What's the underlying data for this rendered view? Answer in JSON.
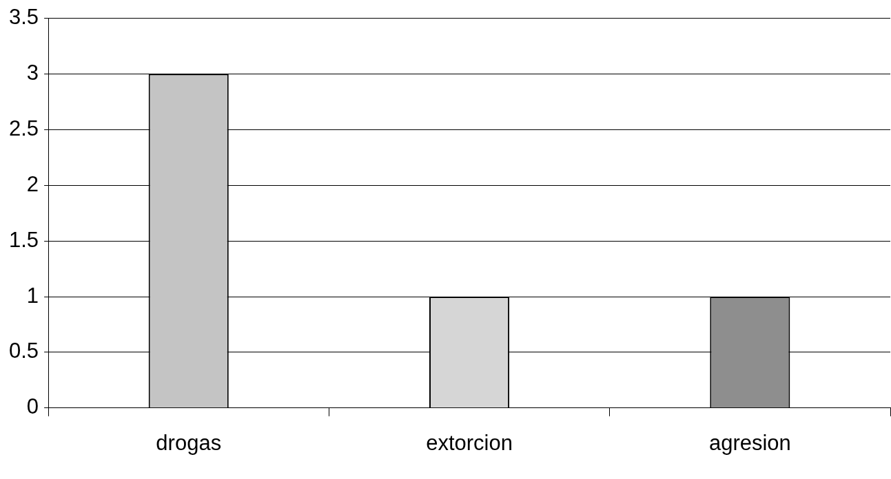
{
  "chart_data": {
    "type": "bar",
    "categories": [
      "drogas",
      "extorcion",
      "agresion"
    ],
    "values": [
      3,
      1,
      1
    ],
    "colors": [
      "#c4c4c4",
      "#d6d6d6",
      "#8e8e8e"
    ],
    "ylim": [
      0,
      3.5
    ],
    "yticks": [
      0,
      0.5,
      1,
      1.5,
      2,
      2.5,
      3,
      3.5
    ],
    "grid": "y",
    "legend": false
  }
}
